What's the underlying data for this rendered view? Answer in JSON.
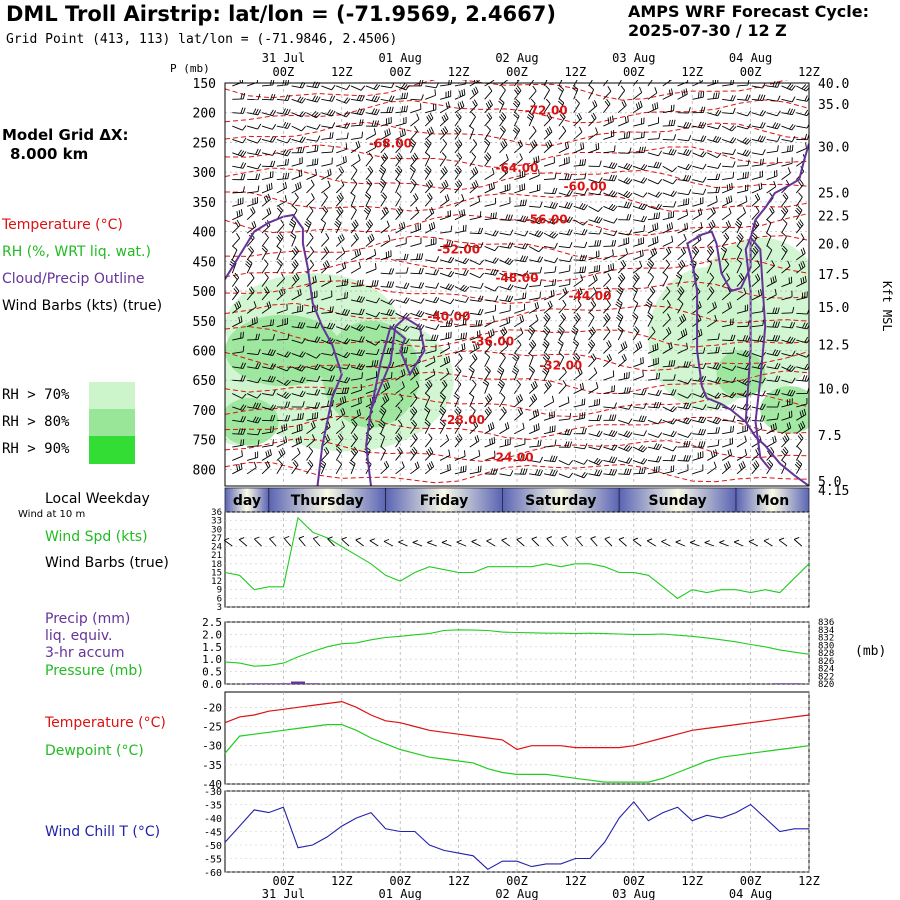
{
  "header": {
    "title": "DML Troll Airstrip:  lat/lon = (-71.9569, 2.4667)",
    "grid_point": "Grid Point (413, 113) lat/lon = (-71.9846, 2.4506)",
    "forecast_cycle_label": "AMPS WRF Forecast Cycle:",
    "forecast_cycle_value": "2025-07-30 / 12  Z"
  },
  "model_grid": {
    "label": "Model Grid ΔX:",
    "value": "8.000 km"
  },
  "legend": {
    "temperature": "Temperature (°C)",
    "rh": "RH (%, WRT liq. wat.)",
    "cloud": "Cloud/Precip Outline",
    "wind": "Wind Barbs (kts) (true)",
    "rh70": "RH > 70%",
    "rh80": "RH > 80%",
    "rh90": "RH > 90%"
  },
  "colors": {
    "temperature": "#dd1111",
    "rh": "#22cc22",
    "cloud": "#663399",
    "wind": "#000000",
    "rh70": "#ccf5cc",
    "rh80": "#99e699",
    "rh90": "#33dd33",
    "windchill": "#2222aa",
    "precip": "#663399"
  },
  "time_axis": {
    "dates_top": [
      "31 Jul",
      "01 Aug",
      "02 Aug",
      "03 Aug",
      "04 Aug"
    ],
    "dates_bottom": [
      "31 Jul",
      "01 Aug",
      "02 Aug",
      "03 Aug",
      "04 Aug"
    ],
    "date_hours": [
      12,
      36,
      60,
      84,
      108
    ],
    "ticks": [
      "00Z",
      "12Z",
      "00Z",
      "12Z",
      "00Z",
      "12Z",
      "00Z",
      "12Z",
      "00Z",
      "12Z"
    ],
    "tick_hours": [
      12,
      24,
      36,
      48,
      60,
      72,
      84,
      96,
      108,
      120
    ],
    "max_hours": 120
  },
  "weekdays": {
    "title": "Local Weekday",
    "days": [
      {
        "label": "day",
        "start": 0,
        "end": 9
      },
      {
        "label": "Thursday",
        "start": 9,
        "end": 33
      },
      {
        "label": "Friday",
        "start": 33,
        "end": 57
      },
      {
        "label": "Saturday",
        "start": 57,
        "end": 81
      },
      {
        "label": "Sunday",
        "start": 81,
        "end": 105
      },
      {
        "label": "Mon",
        "start": 105,
        "end": 120
      }
    ]
  },
  "chart_data": [
    {
      "type": "time-height cross section",
      "id": "profile",
      "ylabel": "P (mb)",
      "right_axis_label": "Kft MSL",
      "ylim": [
        150,
        828
      ],
      "y_ticks": [
        150,
        200,
        250,
        300,
        350,
        400,
        450,
        500,
        550,
        600,
        650,
        700,
        750,
        800
      ],
      "right_ticks": [
        {
          "label": "40.0",
          "p": 150
        },
        {
          "label": "35.0",
          "p": 185
        },
        {
          "label": "30.0",
          "p": 257
        },
        {
          "label": "25.0",
          "p": 334
        },
        {
          "label": "22.5",
          "p": 373
        },
        {
          "label": "20.0",
          "p": 420
        },
        {
          "label": "17.5",
          "p": 471
        },
        {
          "label": "15.0",
          "p": 527
        },
        {
          "label": "12.5",
          "p": 590
        },
        {
          "label": "10.0",
          "p": 664
        },
        {
          "label": "7.5",
          "p": 742
        },
        {
          "label": "5.0",
          "p": 820
        },
        {
          "label": "4.15",
          "p": 842
        }
      ],
      "temperature_labels": [
        {
          "text": "-72.00",
          "hours": 66,
          "p": 196
        },
        {
          "text": "-68.00",
          "hours": 34,
          "p": 252
        },
        {
          "text": "-64.00",
          "hours": 60,
          "p": 293
        },
        {
          "text": "-60.00",
          "hours": 74,
          "p": 324
        },
        {
          "text": "-56.00",
          "hours": 66,
          "p": 380
        },
        {
          "text": "-52.00",
          "hours": 48,
          "p": 430
        },
        {
          "text": "-48.00",
          "hours": 60,
          "p": 478
        },
        {
          "text": "-44.00",
          "hours": 75,
          "p": 508
        },
        {
          "text": "-40.00",
          "hours": 46,
          "p": 543
        },
        {
          "text": "-36.00",
          "hours": 55,
          "p": 585
        },
        {
          "text": "-32.00",
          "hours": 69,
          "p": 625
        },
        {
          "text": "-28.00",
          "hours": 49,
          "p": 717
        },
        {
          "text": "-24.00",
          "hours": 59,
          "p": 780
        }
      ]
    },
    {
      "type": "line",
      "id": "wind10",
      "name": "Wind Spd (kts)",
      "ylim": [
        3,
        36
      ],
      "y_ticks": [
        3,
        6,
        9,
        12,
        15,
        18,
        21,
        24,
        27,
        30,
        33,
        36
      ],
      "x": [
        0,
        3,
        6,
        9,
        12,
        15,
        18,
        21,
        24,
        27,
        30,
        33,
        36,
        39,
        42,
        45,
        48,
        51,
        54,
        57,
        60,
        63,
        66,
        69,
        72,
        75,
        78,
        81,
        84,
        87,
        90,
        93,
        96,
        99,
        102,
        105,
        108,
        111,
        114,
        117,
        120
      ],
      "values": [
        15,
        14,
        9,
        10,
        10,
        34,
        29,
        27,
        24,
        21,
        18,
        14,
        12,
        15,
        17,
        16,
        15,
        15,
        17,
        17,
        17,
        17,
        18,
        17,
        18,
        18,
        17,
        15,
        15,
        14,
        10,
        6,
        9,
        8,
        9,
        9,
        8,
        9,
        8,
        13,
        18
      ]
    },
    {
      "type": "line",
      "id": "precip-pressure",
      "series": [
        {
          "name": "Pressure (mb)",
          "axis": "right",
          "x": [
            0,
            3,
            6,
            9,
            12,
            15,
            18,
            21,
            24,
            27,
            30,
            33,
            36,
            39,
            42,
            45,
            48,
            51,
            54,
            57,
            60,
            63,
            66,
            69,
            72,
            75,
            78,
            81,
            84,
            87,
            90,
            93,
            96,
            99,
            102,
            105,
            108,
            111,
            114,
            117,
            120
          ],
          "values": [
            825.7,
            825.4,
            824.6,
            824.8,
            825.4,
            827.0,
            828.4,
            829.6,
            830.4,
            830.6,
            831.4,
            832.0,
            832.3,
            832.7,
            833.0,
            833.8,
            834.0,
            833.9,
            833.8,
            833.4,
            833.3,
            833.2,
            833.1,
            833.1,
            833.0,
            833.1,
            833.0,
            832.9,
            832.8,
            832.8,
            832.9,
            832.6,
            832.3,
            831.9,
            831.4,
            830.9,
            830.2,
            829.6,
            828.8,
            828.2,
            827.7
          ]
        },
        {
          "name": "Precip (mm) liq. equiv. 3-hr accum",
          "axis": "left",
          "type": "bar",
          "x": [
            6,
            9,
            12,
            15,
            18,
            114,
            117
          ],
          "values": [
            0.03,
            0.03,
            0.03,
            0.1,
            0.03,
            0.03,
            0.03
          ]
        }
      ],
      "ylim_left": [
        0,
        2.5
      ],
      "y_ticks_left": [
        "0.0",
        "0.5",
        "1.0",
        "1.5",
        "2.0",
        "2.5"
      ],
      "ylim_right": [
        820,
        836
      ],
      "y_ticks_right": [
        "820",
        "822",
        "824",
        "826",
        "828",
        "830",
        "832",
        "834",
        "836"
      ]
    },
    {
      "type": "line",
      "id": "temp-dew",
      "series": [
        {
          "name": "Temperature (°C)",
          "x": [
            0,
            3,
            6,
            9,
            12,
            15,
            18,
            21,
            24,
            27,
            30,
            33,
            36,
            39,
            42,
            45,
            48,
            51,
            54,
            57,
            60,
            63,
            66,
            69,
            72,
            75,
            78,
            81,
            84,
            87,
            90,
            93,
            96,
            99,
            102,
            105,
            108,
            111,
            114,
            117,
            120
          ],
          "values": [
            -24,
            -22.5,
            -22,
            -21,
            -20.5,
            -20,
            -19.5,
            -19,
            -18.5,
            -20,
            -22,
            -23.5,
            -24,
            -25,
            -26,
            -26.5,
            -27,
            -27.5,
            -28,
            -28.5,
            -31,
            -30,
            -30,
            -30,
            -30.5,
            -30.5,
            -30.5,
            -30.5,
            -30,
            -29,
            -28,
            -27,
            -26,
            -25.5,
            -25,
            -24.5,
            -24,
            -23.5,
            -23,
            -22.5,
            -22
          ]
        },
        {
          "name": "Dewpoint (°C)",
          "x": [
            0,
            3,
            6,
            9,
            12,
            15,
            18,
            21,
            24,
            27,
            30,
            33,
            36,
            39,
            42,
            45,
            48,
            51,
            54,
            57,
            60,
            63,
            66,
            69,
            72,
            75,
            78,
            81,
            84,
            87,
            90,
            93,
            96,
            99,
            102,
            105,
            108,
            111,
            114,
            117,
            120
          ],
          "values": [
            -32,
            -27.5,
            -27,
            -26.5,
            -26,
            -25.5,
            -25,
            -24.5,
            -24.5,
            -26,
            -28,
            -29.5,
            -31,
            -32,
            -33,
            -33.5,
            -34,
            -34.5,
            -36,
            -37,
            -37.5,
            -37.5,
            -37.5,
            -38,
            -38.5,
            -39,
            -39.5,
            -39.5,
            -39.5,
            -39.5,
            -38.5,
            -37,
            -35.5,
            -34,
            -33,
            -32.5,
            -32,
            -31.5,
            -31,
            -30.5,
            -30
          ]
        }
      ],
      "ylim": [
        -40,
        -16
      ],
      "y_ticks": [
        -40,
        -35,
        -30,
        -25,
        -20
      ]
    },
    {
      "type": "line",
      "id": "windchill",
      "name": "Wind Chill T (°C)",
      "ylim": [
        -60,
        -30
      ],
      "y_ticks": [
        -60,
        -55,
        -50,
        -45,
        -40,
        -35,
        -30
      ],
      "x": [
        0,
        3,
        6,
        9,
        12,
        15,
        18,
        21,
        24,
        27,
        30,
        33,
        36,
        39,
        42,
        45,
        48,
        51,
        54,
        57,
        60,
        63,
        66,
        69,
        72,
        75,
        78,
        81,
        84,
        87,
        90,
        93,
        96,
        99,
        102,
        105,
        108,
        111,
        114,
        117,
        120
      ],
      "values": [
        -49,
        -43,
        -37,
        -38,
        -36,
        -51,
        -50,
        -47,
        -43,
        -40,
        -38,
        -44,
        -45,
        -45,
        -50,
        -52,
        -53,
        -54,
        -59,
        -56,
        -56,
        -58,
        -57,
        -57,
        -55,
        -55,
        -49,
        -40,
        -34,
        -41,
        -38,
        -36,
        -41,
        -39,
        -40,
        -38,
        -35,
        -40,
        -45,
        -44,
        -44
      ]
    }
  ],
  "panels": {
    "wind10": {
      "title": "Wind at 10 m",
      "speed_label": "Wind Spd (kts)",
      "barbs_label": "Wind Barbs (true)"
    },
    "precip": {
      "label1": "Precip (mm)",
      "label2": "liq. equiv.",
      "label3": "3-hr accum",
      "pressure_label": "Pressure (mb)",
      "right_unit": "(mb)"
    },
    "temp": {
      "temp_label": "Temperature (°C)",
      "dew_label": "Dewpoint (°C)"
    },
    "windchill": {
      "label": "Wind Chill T (°C)"
    }
  }
}
